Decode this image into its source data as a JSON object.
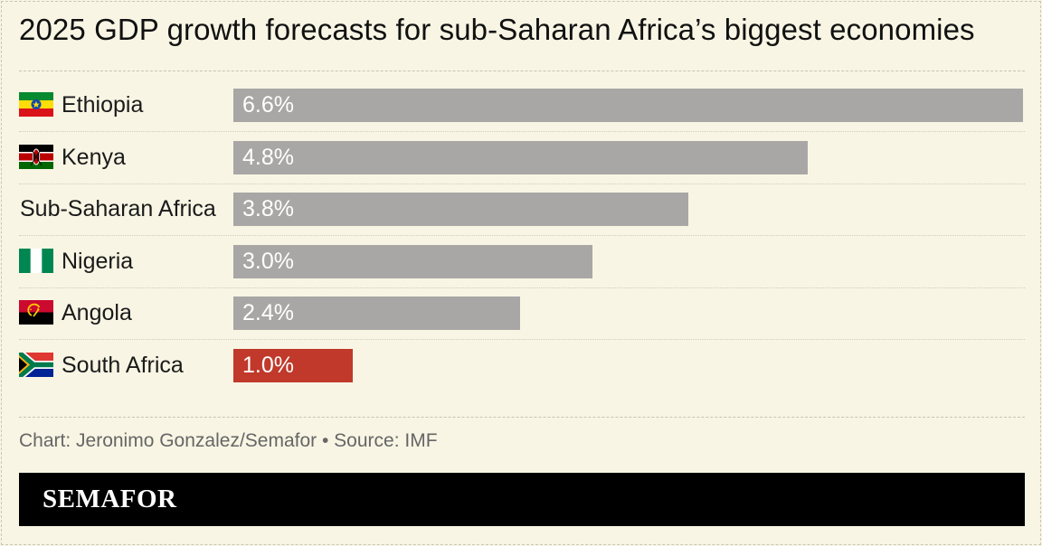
{
  "chart_data": {
    "type": "bar",
    "orientation": "horizontal",
    "title": "2025 GDP growth forecasts for sub-Saharan Africa’s biggest economies",
    "categories": [
      "Ethiopia",
      "Kenya",
      "Sub-Saharan Africa",
      "Nigeria",
      "Angola",
      "South Africa"
    ],
    "values": [
      6.6,
      4.8,
      3.8,
      3.0,
      2.4,
      1.0
    ],
    "value_labels": [
      "6.6%",
      "4.8%",
      "3.8%",
      "3.0%",
      "2.4%",
      "1.0%"
    ],
    "flags": [
      "ethiopia-flag-icon",
      "kenya-flag-icon",
      null,
      "nigeria-flag-icon",
      "angola-flag-icon",
      "south-africa-flag-icon"
    ],
    "highlighted": [
      false,
      false,
      false,
      false,
      false,
      true
    ],
    "xlim": [
      0,
      6.6
    ],
    "grid": false,
    "legend": "none",
    "colors": {
      "default": "#a8a7a5",
      "highlight": "#c0392b"
    }
  },
  "footer": {
    "source": "Chart: Jeronimo Gonzalez/Semafor • Source: IMF",
    "brand": "SEMAFOR"
  }
}
